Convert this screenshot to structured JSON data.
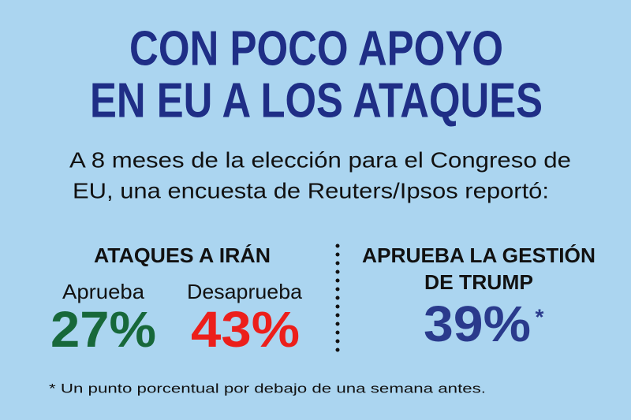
{
  "title": [
    "CON POCO APOYO",
    "EN EU A LOS ATAQUES"
  ],
  "subtitle": [
    "A 8 meses de la elección para el Congreso de",
    "EU, una encuesta de Reuters/Ipsos reportó:"
  ],
  "left": {
    "heading": "ATAQUES A IRÁN",
    "items": [
      {
        "label": "Aprueba",
        "value": "27%"
      },
      {
        "label": "Desaprueba",
        "value": "43%"
      }
    ]
  },
  "right": {
    "heading": [
      "APRUEBA LA GESTIÓN",
      "DE TRUMP"
    ],
    "value": "39%",
    "marker": "*"
  },
  "footnote": "* Un punto porcentual por debajo de una semana antes."
}
